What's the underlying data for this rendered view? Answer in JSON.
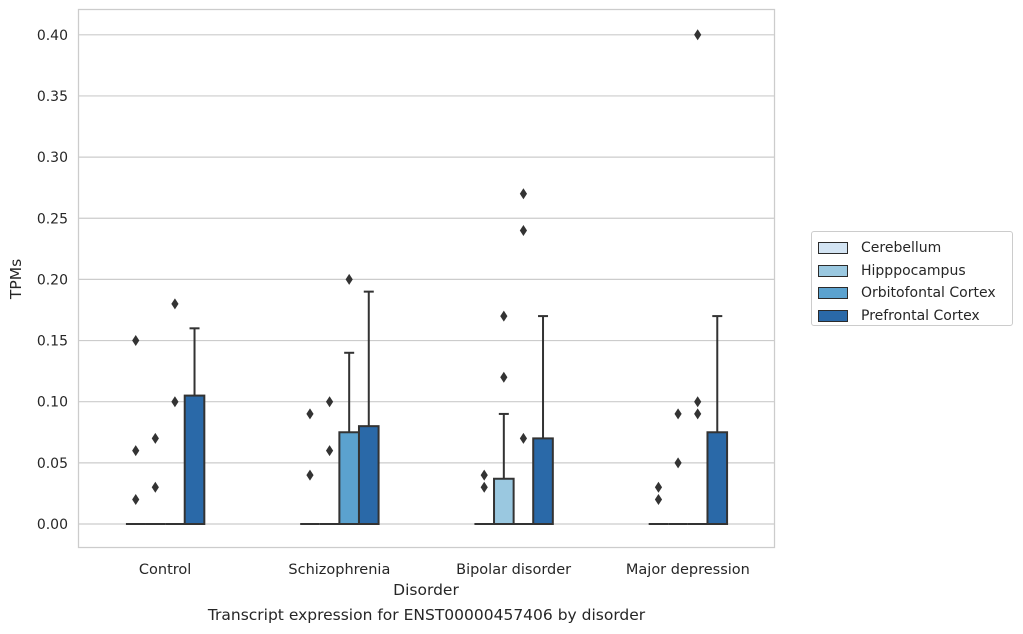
{
  "chart_data": {
    "type": "box",
    "xlabel": "Disorder",
    "ylabel": "TPMs",
    "caption": "Transcript expression for ENST00000457406 by disorder",
    "categories": [
      "Control",
      "Schizophrenia",
      "Bipolar disorder",
      "Major depression"
    ],
    "ylim": [
      -0.02,
      0.42
    ],
    "yticks": [
      "0.00",
      "0.05",
      "0.10",
      "0.15",
      "0.20",
      "0.25",
      "0.30",
      "0.35",
      "0.40"
    ],
    "grid": true,
    "legend_position": "right",
    "series": [
      {
        "name": "Cerebellum",
        "color": "#d3e4f3",
        "boxes": [
          {
            "q1": 0,
            "median": 0,
            "q3": 0,
            "whisker_low": 0,
            "whisker_high": 0,
            "outliers": [
              0.15,
              0.06,
              0.02
            ]
          },
          {
            "q1": 0,
            "median": 0,
            "q3": 0,
            "whisker_low": 0,
            "whisker_high": 0,
            "outliers": [
              0.09,
              0.04
            ]
          },
          {
            "q1": 0,
            "median": 0,
            "q3": 0,
            "whisker_low": 0,
            "whisker_high": 0,
            "outliers": [
              0.04,
              0.03
            ]
          },
          {
            "q1": 0,
            "median": 0,
            "q3": 0,
            "whisker_low": 0,
            "whisker_high": 0,
            "outliers": [
              0.03,
              0.02
            ]
          }
        ]
      },
      {
        "name": "Hipppocampus",
        "color": "#9ac8e0",
        "boxes": [
          {
            "q1": 0,
            "median": 0,
            "q3": 0,
            "whisker_low": 0,
            "whisker_high": 0,
            "outliers": [
              0.07,
              0.03
            ]
          },
          {
            "q1": 0,
            "median": 0,
            "q3": 0,
            "whisker_low": 0,
            "whisker_high": 0,
            "outliers": [
              0.1,
              0.06
            ]
          },
          {
            "q1": 0,
            "median": 0,
            "q3": 0.037,
            "whisker_low": 0,
            "whisker_high": 0.09,
            "outliers": [
              0.17,
              0.12
            ]
          },
          {
            "q1": 0,
            "median": 0,
            "q3": 0,
            "whisker_low": 0,
            "whisker_high": 0,
            "outliers": [
              0.09,
              0.05
            ]
          }
        ]
      },
      {
        "name": "Orbitofontal Cortex",
        "color": "#5ba2cf",
        "boxes": [
          {
            "q1": 0,
            "median": 0,
            "q3": 0,
            "whisker_low": 0,
            "whisker_high": 0,
            "outliers": [
              0.18,
              0.1
            ]
          },
          {
            "q1": 0,
            "median": 0,
            "q3": 0.075,
            "whisker_low": 0,
            "whisker_high": 0.14,
            "outliers": [
              0.2
            ]
          },
          {
            "q1": 0,
            "median": 0,
            "q3": 0,
            "whisker_low": 0,
            "whisker_high": 0,
            "outliers": [
              0.27,
              0.24,
              0.07
            ]
          },
          {
            "q1": 0,
            "median": 0,
            "q3": 0,
            "whisker_low": 0,
            "whisker_high": 0,
            "outliers": [
              0.4,
              0.1,
              0.09
            ]
          }
        ]
      },
      {
        "name": "Prefrontal Cortex",
        "color": "#2a69a8",
        "boxes": [
          {
            "q1": 0,
            "median": 0,
            "q3": 0.105,
            "whisker_low": 0,
            "whisker_high": 0.16,
            "outliers": []
          },
          {
            "q1": 0,
            "median": 0,
            "q3": 0.08,
            "whisker_low": 0,
            "whisker_high": 0.19,
            "outliers": []
          },
          {
            "q1": 0,
            "median": 0,
            "q3": 0.07,
            "whisker_low": 0,
            "whisker_high": 0.17,
            "outliers": []
          },
          {
            "q1": 0,
            "median": 0,
            "q3": 0.075,
            "whisker_low": 0,
            "whisker_high": 0.17,
            "outliers": []
          }
        ]
      }
    ]
  }
}
